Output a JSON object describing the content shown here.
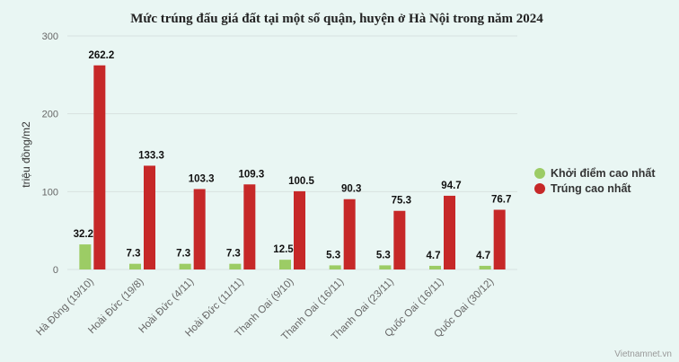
{
  "chart_data": {
    "type": "bar",
    "title": "Mức trúng đấu giá đất tại một số quận, huyện ở Hà Nội trong năm 2024",
    "ylabel": "triệu đồng/m2",
    "xlabel": "",
    "ylim": [
      0,
      300
    ],
    "yticks": [
      0,
      100,
      200,
      300
    ],
    "grid": true,
    "legend_position": "right",
    "categories": [
      "Hà Đông (19/10)",
      "Hoài Đức (19/8)",
      "Hoài Đức (4/11)",
      "Hoài Đức (11/11)",
      "Thanh Oai (9/10)",
      "Thanh Oai (16/11)",
      "Thanh Oai (23/11)",
      "Quốc Oai (16/11)",
      "Quốc Oai (30/12)"
    ],
    "series": [
      {
        "name": "Khởi điểm cao nhất",
        "color": "#9ccc65",
        "values": [
          32.2,
          7.3,
          7.3,
          7.3,
          12.5,
          5.3,
          5.3,
          4.7,
          4.7
        ]
      },
      {
        "name": "Trúng cao nhất",
        "color": "#c62828",
        "values": [
          262.2,
          133.3,
          103.3,
          109.3,
          100.5,
          90.3,
          75.3,
          94.7,
          76.7
        ]
      }
    ],
    "data_labels": [
      [
        "32.2",
        "7.3",
        "7.3",
        "7.3",
        "12.5",
        "5.3",
        "5.3",
        "4.7",
        "4.7"
      ],
      [
        "262.2",
        "133.3",
        "103.3",
        "109.3",
        "100.5",
        "90.3",
        "75.3",
        "94.7",
        "76.7"
      ]
    ]
  },
  "credit": "Vietnamnet.vn"
}
